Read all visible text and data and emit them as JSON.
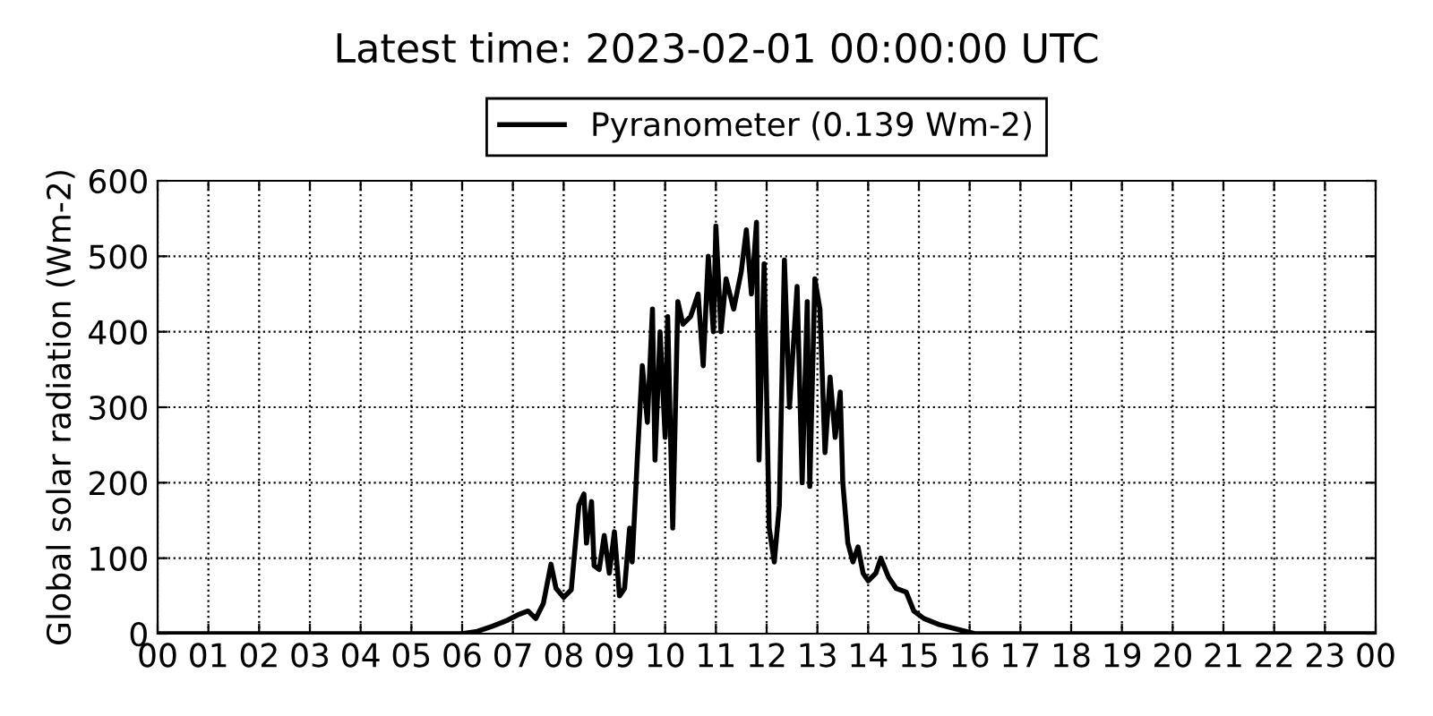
{
  "chart_data": {
    "type": "line",
    "title": "Latest time: 2023-02-01 00:00:00 UTC",
    "ylabel": "Global solar radiation (Wm-2)",
    "series": [
      {
        "name": "Pyranometer (0.139 Wm-2)",
        "color": "#000000",
        "x": [
          0,
          6.0,
          6.3,
          6.6,
          6.9,
          7.1,
          7.3,
          7.45,
          7.6,
          7.75,
          7.85,
          8.0,
          8.15,
          8.3,
          8.4,
          8.45,
          8.55,
          8.6,
          8.7,
          8.8,
          8.9,
          9.0,
          9.1,
          9.2,
          9.3,
          9.35,
          9.45,
          9.55,
          9.65,
          9.75,
          9.8,
          9.9,
          10.0,
          10.05,
          10.15,
          10.25,
          10.35,
          10.5,
          10.65,
          10.75,
          10.85,
          10.95,
          11.0,
          11.1,
          11.2,
          11.35,
          11.5,
          11.6,
          11.7,
          11.8,
          11.85,
          11.95,
          12.05,
          12.15,
          12.25,
          12.35,
          12.45,
          12.6,
          12.7,
          12.8,
          12.85,
          12.95,
          13.05,
          13.15,
          13.25,
          13.35,
          13.45,
          13.5,
          13.6,
          13.7,
          13.8,
          13.9,
          14.0,
          14.15,
          14.25,
          14.4,
          14.55,
          14.75,
          14.9,
          15.1,
          15.4,
          15.8,
          16.1,
          24
        ],
        "values": [
          0,
          0,
          3,
          10,
          18,
          25,
          30,
          20,
          40,
          92,
          60,
          48,
          58,
          170,
          185,
          120,
          175,
          90,
          85,
          130,
          80,
          135,
          50,
          60,
          140,
          95,
          230,
          355,
          280,
          430,
          230,
          400,
          260,
          420,
          140,
          440,
          410,
          420,
          450,
          355,
          500,
          400,
          540,
          400,
          470,
          430,
          480,
          535,
          450,
          545,
          230,
          490,
          140,
          95,
          170,
          495,
          300,
          460,
          200,
          440,
          195,
          470,
          430,
          240,
          340,
          260,
          320,
          200,
          120,
          95,
          115,
          80,
          70,
          80,
          100,
          75,
          60,
          55,
          30,
          20,
          12,
          5,
          0,
          0
        ]
      }
    ],
    "xlim": [
      0,
      24
    ],
    "xticks": [
      {
        "value": 0,
        "label": "00"
      },
      {
        "value": 1,
        "label": "01"
      },
      {
        "value": 2,
        "label": "02"
      },
      {
        "value": 3,
        "label": "03"
      },
      {
        "value": 4,
        "label": "04"
      },
      {
        "value": 5,
        "label": "05"
      },
      {
        "value": 6,
        "label": "06"
      },
      {
        "value": 7,
        "label": "07"
      },
      {
        "value": 8,
        "label": "08"
      },
      {
        "value": 9,
        "label": "09"
      },
      {
        "value": 10,
        "label": "10"
      },
      {
        "value": 11,
        "label": "11"
      },
      {
        "value": 12,
        "label": "12"
      },
      {
        "value": 13,
        "label": "13"
      },
      {
        "value": 14,
        "label": "14"
      },
      {
        "value": 15,
        "label": "15"
      },
      {
        "value": 16,
        "label": "16"
      },
      {
        "value": 17,
        "label": "17"
      },
      {
        "value": 18,
        "label": "18"
      },
      {
        "value": 19,
        "label": "19"
      },
      {
        "value": 20,
        "label": "20"
      },
      {
        "value": 21,
        "label": "21"
      },
      {
        "value": 22,
        "label": "22"
      },
      {
        "value": 23,
        "label": "23"
      },
      {
        "value": 24,
        "label": "00"
      }
    ],
    "ylim": [
      0,
      600
    ],
    "yticks": [
      0,
      100,
      200,
      300,
      400,
      500,
      600
    ],
    "grid": true,
    "legend": "top",
    "line_style": "solid",
    "marker": "none"
  }
}
